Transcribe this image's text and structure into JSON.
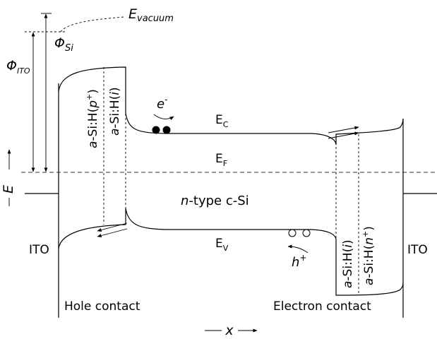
{
  "labels": {
    "e_vacuum_main": "E",
    "e_vacuum_sub": "vacuum",
    "phi_si_main": "Φ",
    "phi_si_sub": "Si",
    "phi_ito_main": "Φ",
    "phi_ito_sub": "ITO",
    "energy_axis": "E",
    "position_axis": "x",
    "ec_main": "E",
    "ec_sub": "C",
    "ef_main": "E",
    "ef_sub": "F",
    "ev_main": "E",
    "ev_sub": "V",
    "electron_main": "e",
    "electron_sup": "-",
    "hole_main": "h",
    "hole_sup": "+",
    "n_type_italic": "n",
    "n_type_rest": "-type c-Si",
    "ito_left": "ITO",
    "ito_right": "ITO",
    "hole_contact": "Hole contact",
    "electron_contact": "Electron contact",
    "layer_a": "a",
    "layer_si_h": "-Si:H(",
    "layer_close": ")",
    "layer_p": "p",
    "layer_i": "i",
    "layer_n": "n",
    "plus": "+"
  }
}
